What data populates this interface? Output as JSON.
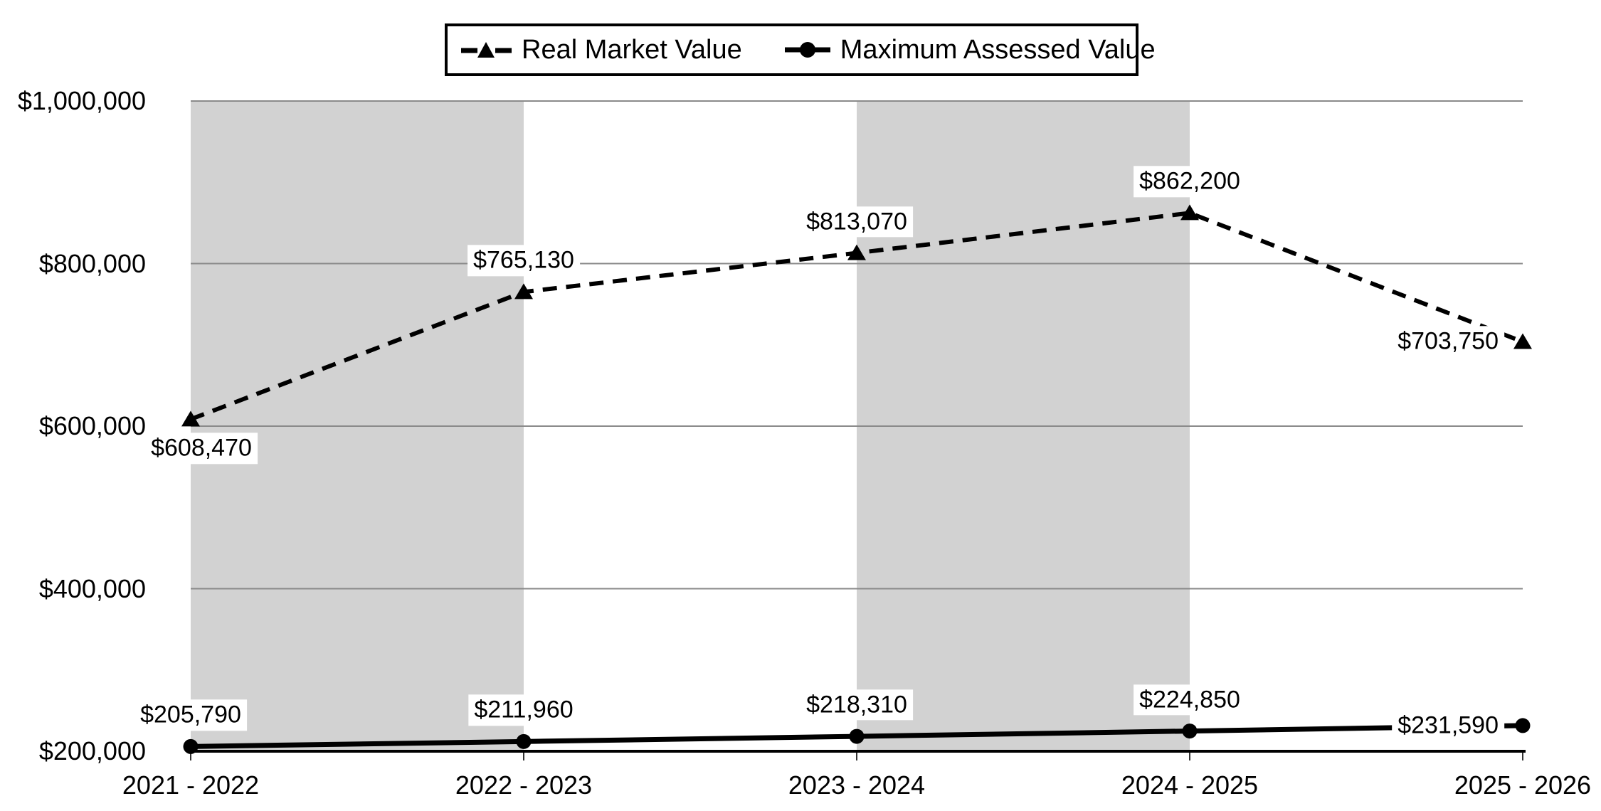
{
  "chart_data": {
    "type": "line",
    "title": "",
    "xlabel": "",
    "ylabel": "",
    "categories": [
      "2021 - 2022",
      "2022 - 2023",
      "2023 - 2024",
      "2024 - 2025",
      "2025 - 2026"
    ],
    "series": [
      {
        "name": "Real Market Value",
        "style": "dashed",
        "marker": "triangle",
        "values": [
          608470,
          765130,
          813070,
          862200,
          703750
        ],
        "labels": [
          "$608,470",
          "$765,130",
          "$813,070",
          "$862,200",
          "$703,750"
        ],
        "label_placement": [
          "below",
          "above",
          "above",
          "above",
          "left"
        ]
      },
      {
        "name": "Maximum Assessed Value",
        "style": "solid",
        "marker": "circle",
        "values": [
          205790,
          211960,
          218310,
          224850,
          231590
        ],
        "labels": [
          "$205,790",
          "$211,960",
          "$218,310",
          "$224,850",
          "$231,590"
        ],
        "label_placement": [
          "above",
          "above",
          "above",
          "above",
          "left"
        ]
      }
    ],
    "ylim": [
      200000,
      1000000
    ],
    "y_ticks": [
      {
        "value": 200000,
        "label": "$200,000"
      },
      {
        "value": 400000,
        "label": "$400,000"
      },
      {
        "value": 600000,
        "label": "$600,000"
      },
      {
        "value": 800000,
        "label": "$800,000"
      },
      {
        "value": 1000000,
        "label": "$1,000,000"
      }
    ],
    "grid": "horizontal",
    "legend_position": "top",
    "shaded_bands": [
      [
        0,
        1
      ],
      [
        2,
        3
      ]
    ],
    "colors": {
      "line": "#000000",
      "band": "#d2d2d2",
      "gridline": "#8a8a8a",
      "axis": "#000000",
      "tick": "#333333",
      "background": "#ffffff",
      "label_background": "#ffffff"
    }
  }
}
